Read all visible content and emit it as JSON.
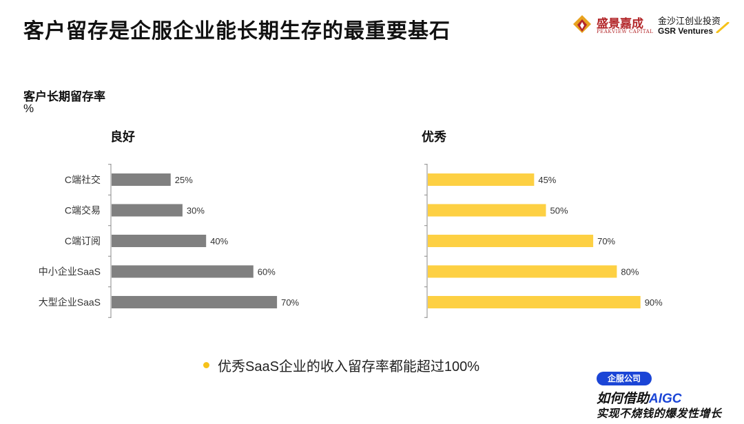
{
  "page": {
    "title": "客户留存是企服企业能长期生存的最重要基石",
    "metric_title": "客户长期留存率",
    "metric_unit": "%",
    "bullet_text": "优秀SaaS企业的收入留存率都能超过100%"
  },
  "logos": {
    "peakview_cn": "盛景嘉成",
    "peakview_en": "PEAKVIEW CAPITAL",
    "gsr_cn": "金沙江创业投资",
    "gsr_en": "GSR Ventures"
  },
  "promo": {
    "badge": "企服公司",
    "line1_prefix": "如何借助",
    "line1_highlight": "AIGC",
    "line2": "实现不烧钱的爆发性增长"
  },
  "colors": {
    "good": "#808080",
    "excellent": "#fdd043",
    "accent_blue": "#1b45d6",
    "peakview_red": "#b3272a"
  },
  "chart_data": [
    {
      "type": "bar",
      "orientation": "horizontal",
      "title": "良好",
      "categories": [
        "C端社交",
        "C端交易",
        "C端订阅",
        "中小企业SaaS",
        "大型企业SaaS"
      ],
      "values": [
        25,
        30,
        40,
        60,
        70
      ],
      "value_suffix": "%",
      "xlim": [
        0,
        100
      ],
      "grid": false,
      "color": "#808080"
    },
    {
      "type": "bar",
      "orientation": "horizontal",
      "title": "优秀",
      "categories": [
        "C端社交",
        "C端交易",
        "C端订阅",
        "中小企业SaaS",
        "大型企业SaaS"
      ],
      "values": [
        45,
        50,
        70,
        80,
        90
      ],
      "value_suffix": "%",
      "xlim": [
        0,
        100
      ],
      "grid": false,
      "color": "#fdd043"
    }
  ]
}
